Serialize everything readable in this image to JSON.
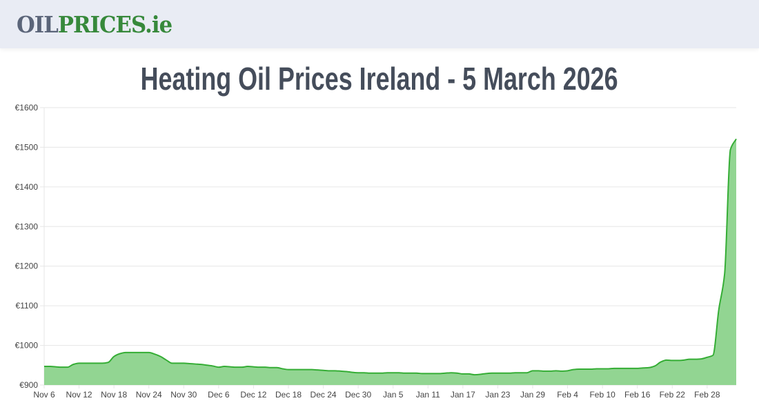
{
  "header": {
    "logo_part1": "OIL",
    "logo_part2": "PRICES.ie"
  },
  "page_title": "Heating Oil Prices Ireland - 5 March 2026",
  "colors": {
    "line": "#35ad35",
    "fill": "#92d592",
    "grid": "#e6e6e6"
  },
  "chart_data": {
    "type": "area",
    "title": "Heating Oil Prices Ireland - 5 March 2026",
    "xlabel": "",
    "ylabel": "",
    "start_date": "Nov 6",
    "end_date": "Mar 5",
    "ylim": [
      900,
      1600
    ],
    "y_ticks": [
      900,
      1000,
      1100,
      1200,
      1300,
      1400,
      1500,
      1600
    ],
    "y_tick_labels": [
      "€900",
      "€1000",
      "€1100",
      "€1200",
      "€1300",
      "€1400",
      "€1500",
      "€1600"
    ],
    "x_tick_labels": [
      "Nov 6",
      "Nov 12",
      "Nov 18",
      "Nov 24",
      "Nov 30",
      "Dec 6",
      "Dec 12",
      "Dec 18",
      "Dec 24",
      "Dec 30",
      "Jan 5",
      "Jan 11",
      "Jan 17",
      "Jan 23",
      "Jan 29",
      "Feb 4",
      "Feb 10",
      "Feb 16",
      "Feb 22",
      "Feb 28"
    ],
    "x_tick_every_days": 6,
    "grid": true,
    "values": [
      947,
      947,
      946,
      945,
      945,
      952,
      955,
      955,
      955,
      955,
      955,
      957,
      972,
      979,
      982,
      982,
      982,
      982,
      982,
      978,
      972,
      963,
      955,
      955,
      955,
      954,
      953,
      952,
      950,
      948,
      945,
      947,
      946,
      945,
      945,
      947,
      946,
      945,
      945,
      944,
      944,
      941,
      939,
      939,
      939,
      939,
      939,
      938,
      937,
      936,
      936,
      935,
      934,
      932,
      931,
      931,
      930,
      930,
      930,
      931,
      931,
      931,
      930,
      930,
      930,
      929,
      929,
      929,
      929,
      930,
      931,
      930,
      928,
      928,
      926,
      927,
      929,
      930,
      930,
      930,
      930,
      931,
      931,
      931,
      936,
      936,
      935,
      935,
      936,
      935,
      936,
      939,
      940,
      940,
      940,
      941,
      941,
      941,
      942,
      942,
      942,
      942,
      942,
      943,
      944,
      948,
      958,
      963,
      962,
      962,
      963,
      965,
      965,
      966,
      970,
      975,
      1090,
      1180,
      1494,
      1521
    ]
  }
}
